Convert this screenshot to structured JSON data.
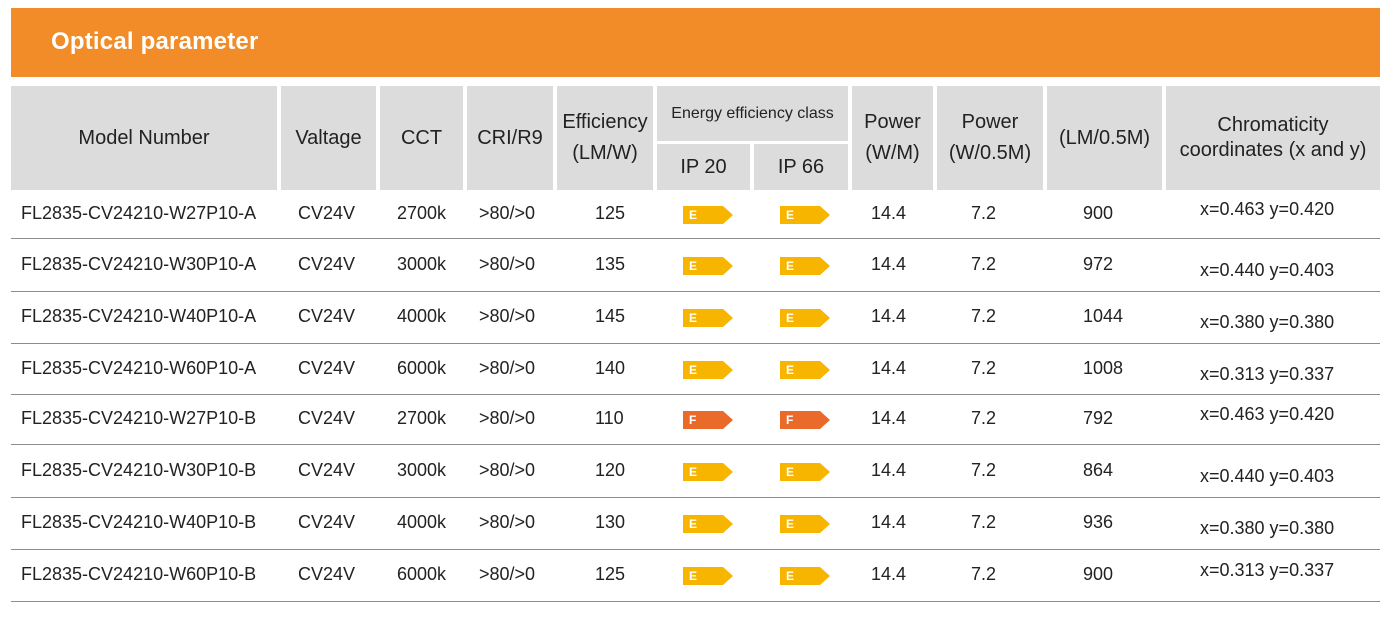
{
  "title": "Optical parameter",
  "headers": {
    "model": "Model Number",
    "voltage": "Valtage",
    "cct": "CCT",
    "cri": "CRI/R9",
    "efficiency_line1": "Efficiency",
    "efficiency_line2": "(LM/W)",
    "energy_class": "Energy efficiency class",
    "ip20": "IP 20",
    "ip66": "IP 66",
    "power_m_line1": "Power",
    "power_m_line2": "(W/M)",
    "power_half_line1": "Power",
    "power_half_line2": "(W/0.5M)",
    "lm": "(LM/0.5M)",
    "chroma_line1": "Chromaticity",
    "chroma_line2": "coordinates (x and y)"
  },
  "class_colors": {
    "E": "#f7b500",
    "F": "#ea6a2a"
  },
  "rows": [
    {
      "model": "FL2835-CV24210-W27P10-A",
      "voltage": "CV24V",
      "cct": "2700k",
      "cri": ">80/>0",
      "efficiency": "125",
      "ip20": "E",
      "ip66": "E",
      "power_m": "14.4",
      "power_half": "7.2",
      "lm": "900",
      "chroma": "x=0.463 y=0.420"
    },
    {
      "model": "FL2835-CV24210-W30P10-A",
      "voltage": "CV24V",
      "cct": "3000k",
      "cri": ">80/>0",
      "efficiency": "135",
      "ip20": "E",
      "ip66": "E",
      "power_m": "14.4",
      "power_half": "7.2",
      "lm": "972",
      "chroma": "x=0.440 y=0.403"
    },
    {
      "model": "FL2835-CV24210-W40P10-A",
      "voltage": "CV24V",
      "cct": "4000k",
      "cri": ">80/>0",
      "efficiency": "145",
      "ip20": "E",
      "ip66": "E",
      "power_m": "14.4",
      "power_half": "7.2",
      "lm": "1044",
      "chroma": "x=0.380 y=0.380"
    },
    {
      "model": "FL2835-CV24210-W60P10-A",
      "voltage": "CV24V",
      "cct": "6000k",
      "cri": ">80/>0",
      "efficiency": "140",
      "ip20": "E",
      "ip66": "E",
      "power_m": "14.4",
      "power_half": "7.2",
      "lm": "1008",
      "chroma": "x=0.313 y=0.337"
    },
    {
      "model": "FL2835-CV24210-W27P10-B",
      "voltage": "CV24V",
      "cct": "2700k",
      "cri": ">80/>0",
      "efficiency": "110",
      "ip20": "F",
      "ip66": "F",
      "power_m": "14.4",
      "power_half": "7.2",
      "lm": "792",
      "chroma": "x=0.463 y=0.420"
    },
    {
      "model": "FL2835-CV24210-W30P10-B",
      "voltage": "CV24V",
      "cct": "3000k",
      "cri": ">80/>0",
      "efficiency": "120",
      "ip20": "E",
      "ip66": "E",
      "power_m": "14.4",
      "power_half": "7.2",
      "lm": "864",
      "chroma": "x=0.440 y=0.403"
    },
    {
      "model": "FL2835-CV24210-W40P10-B",
      "voltage": "CV24V",
      "cct": "4000k",
      "cri": ">80/>0",
      "efficiency": "130",
      "ip20": "E",
      "ip66": "E",
      "power_m": "14.4",
      "power_half": "7.2",
      "lm": "936",
      "chroma": "x=0.380 y=0.380"
    },
    {
      "model": "FL2835-CV24210-W60P10-B",
      "voltage": "CV24V",
      "cct": "6000k",
      "cri": ">80/>0",
      "efficiency": "125",
      "ip20": "E",
      "ip66": "E",
      "power_m": "14.4",
      "power_half": "7.2",
      "lm": "900",
      "chroma": "x=0.313 y=0.337"
    }
  ]
}
